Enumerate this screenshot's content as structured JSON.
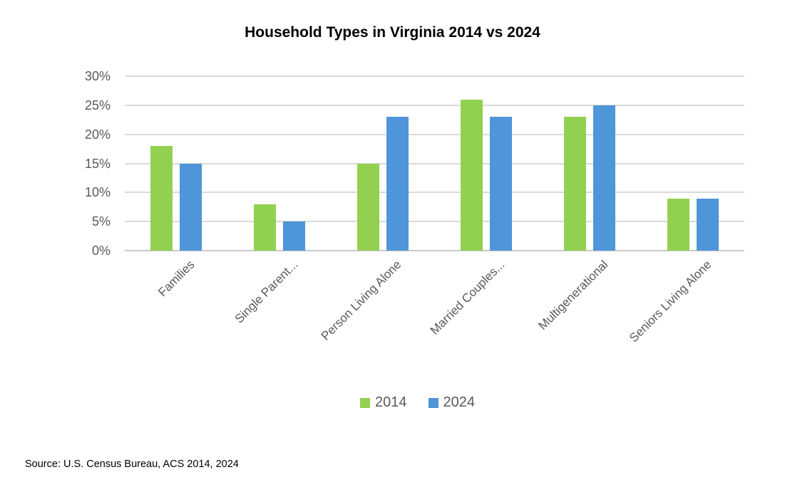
{
  "title": "Household Types in Virginia 2014 vs 2024",
  "source": "Source: U.S. Census Bureau, ACS 2014, 2024",
  "legend": {
    "items": [
      {
        "label": "2014",
        "color": "#92D050"
      },
      {
        "label": "2024",
        "color": "#4E95D9"
      }
    ]
  },
  "colors": {
    "grid": "#d9d9d9",
    "baseline": "#c9c9c9",
    "axis_text": "#595959",
    "title_text": "#000000",
    "series_2014": "#92D050",
    "series_2024": "#4E95D9"
  },
  "chart_data": {
    "type": "bar",
    "title": "Household Types in Virginia 2014 vs 2024",
    "categories": [
      "Families",
      "Single Parent...",
      "Person Living Alone",
      "Married Couples...",
      "Multigenerational",
      "Seniors Living Alone"
    ],
    "series": [
      {
        "name": "2014",
        "color": "#92D050",
        "values": [
          18,
          8,
          15,
          26,
          23,
          9
        ]
      },
      {
        "name": "2024",
        "color": "#4E95D9",
        "values": [
          15,
          5,
          23,
          23,
          25,
          9
        ]
      }
    ],
    "xlabel": "",
    "ylabel": "",
    "ylim": [
      0,
      30
    ],
    "yticks": [
      0,
      5,
      10,
      15,
      20,
      25,
      30
    ],
    "ytick_suffix": "%",
    "grid": true,
    "legend_position": "bottom"
  }
}
